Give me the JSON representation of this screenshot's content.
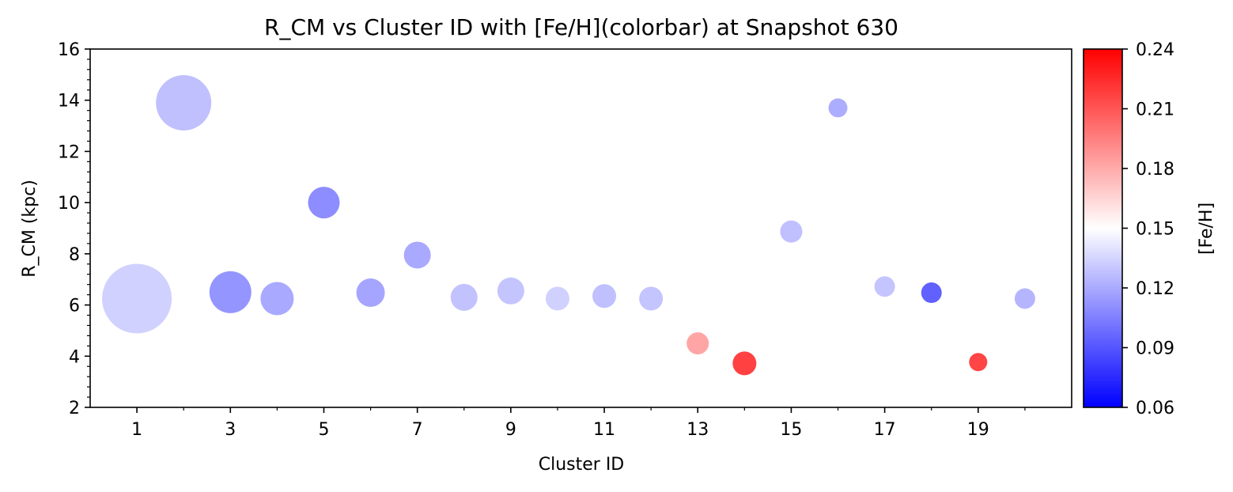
{
  "chart_data": {
    "type": "scatter",
    "title": "R_CM vs Cluster ID with [Fe/H](colorbar) at Snapshot 630",
    "xlabel": "Cluster ID",
    "ylabel": "R_CM (kpc)",
    "xlim": [
      0.0,
      21.0
    ],
    "ylim": [
      2,
      16
    ],
    "xticks": [
      1,
      3,
      5,
      7,
      9,
      11,
      13,
      15,
      17,
      19
    ],
    "xticks_minor": [
      2,
      4,
      6,
      8,
      10,
      12,
      14,
      16,
      18,
      20
    ],
    "yticks": [
      2,
      4,
      6,
      8,
      10,
      12,
      14,
      16
    ],
    "grid": false,
    "colorbar": {
      "label": "[Fe/H]",
      "min": 0.06,
      "max": 0.24,
      "ticks": [
        0.06,
        0.09,
        0.12,
        0.15,
        0.18,
        0.21,
        0.24
      ],
      "tick_labels": [
        "0.06",
        "0.09",
        "0.12",
        "0.15",
        "0.18",
        "0.21",
        "0.24"
      ],
      "colormap": "bwr"
    },
    "points": [
      {
        "x": 1,
        "y": 6.25,
        "feh": 0.13,
        "size": 88
      },
      {
        "x": 2,
        "y": 13.9,
        "feh": 0.122,
        "size": 70
      },
      {
        "x": 3,
        "y": 6.5,
        "feh": 0.103,
        "size": 53
      },
      {
        "x": 4,
        "y": 6.25,
        "feh": 0.112,
        "size": 42
      },
      {
        "x": 5,
        "y": 10.0,
        "feh": 0.1,
        "size": 40
      },
      {
        "x": 6,
        "y": 6.48,
        "feh": 0.11,
        "size": 36
      },
      {
        "x": 7,
        "y": 7.95,
        "feh": 0.112,
        "size": 34
      },
      {
        "x": 8,
        "y": 6.3,
        "feh": 0.123,
        "size": 34
      },
      {
        "x": 9,
        "y": 6.55,
        "feh": 0.124,
        "size": 34
      },
      {
        "x": 10,
        "y": 6.25,
        "feh": 0.13,
        "size": 30
      },
      {
        "x": 11,
        "y": 6.35,
        "feh": 0.122,
        "size": 30
      },
      {
        "x": 12,
        "y": 6.25,
        "feh": 0.124,
        "size": 30
      },
      {
        "x": 13,
        "y": 4.5,
        "feh": 0.19,
        "size": 28
      },
      {
        "x": 14,
        "y": 3.72,
        "feh": 0.234,
        "size": 30
      },
      {
        "x": 15,
        "y": 8.87,
        "feh": 0.122,
        "size": 28
      },
      {
        "x": 16,
        "y": 13.7,
        "feh": 0.114,
        "size": 24
      },
      {
        "x": 17,
        "y": 6.72,
        "feh": 0.124,
        "size": 26
      },
      {
        "x": 18,
        "y": 6.48,
        "feh": 0.08,
        "size": 26
      },
      {
        "x": 19,
        "y": 3.77,
        "feh": 0.232,
        "size": 23
      },
      {
        "x": 20,
        "y": 6.25,
        "feh": 0.117,
        "size": 26
      }
    ]
  }
}
